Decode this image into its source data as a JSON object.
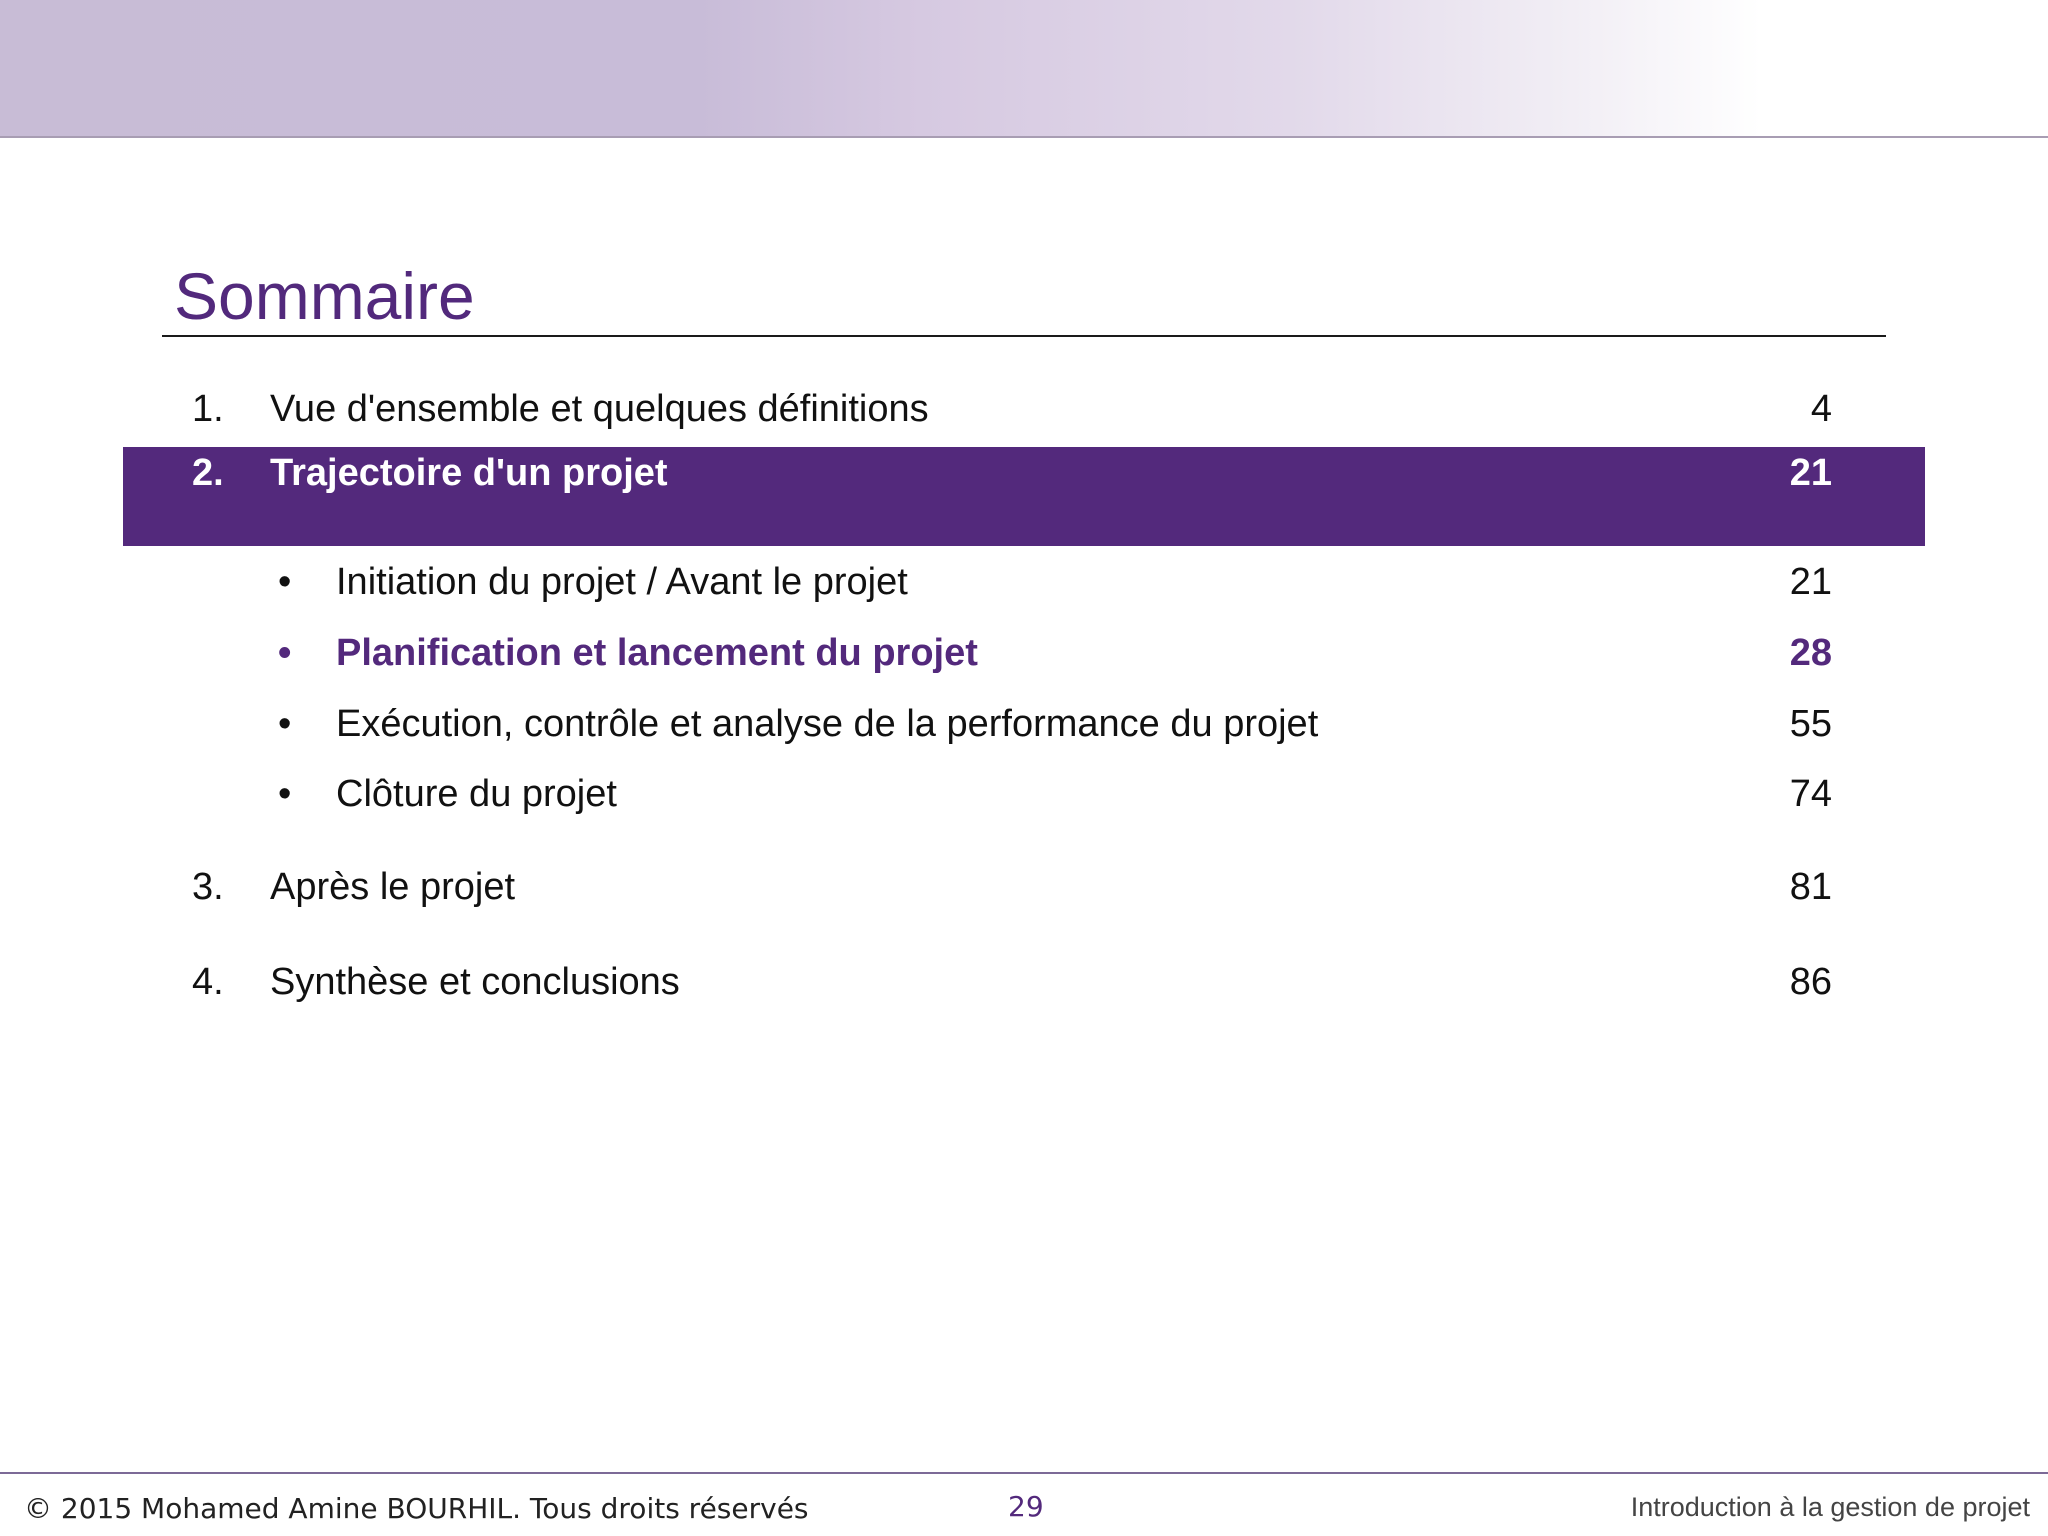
{
  "title": "Sommaire",
  "toc": {
    "item1": {
      "number": "1.",
      "label": "Vue d'ensemble et quelques définitions",
      "page": "4"
    },
    "item2": {
      "number": "2.",
      "label": "Trajectoire d'un projet",
      "page": "21"
    },
    "sub1": {
      "bullet": "•",
      "label": "Initiation du projet / Avant le projet",
      "page": "21"
    },
    "sub2": {
      "bullet": "•",
      "label": "Planification et lancement du projet",
      "page": "28"
    },
    "sub3": {
      "bullet": "•",
      "label": "Exécution, contrôle et analyse de la performance du projet",
      "page": "55"
    },
    "sub4": {
      "bullet": "•",
      "label": "Clôture du projet",
      "page": "74"
    },
    "item3": {
      "number": "3.",
      "label": "Après le projet",
      "page": "81"
    },
    "item4": {
      "number": "4.",
      "label": "Synthèse et conclusions",
      "page": "86"
    }
  },
  "footer": {
    "copyright": "© 2015 Mohamed Amine BOURHIL. Tous droits réservés",
    "slide_number": "29",
    "course_title": "Introduction à la gestion de projet"
  },
  "colors": {
    "accent": "#53297c",
    "header_band_start": "#c8bcd6"
  }
}
